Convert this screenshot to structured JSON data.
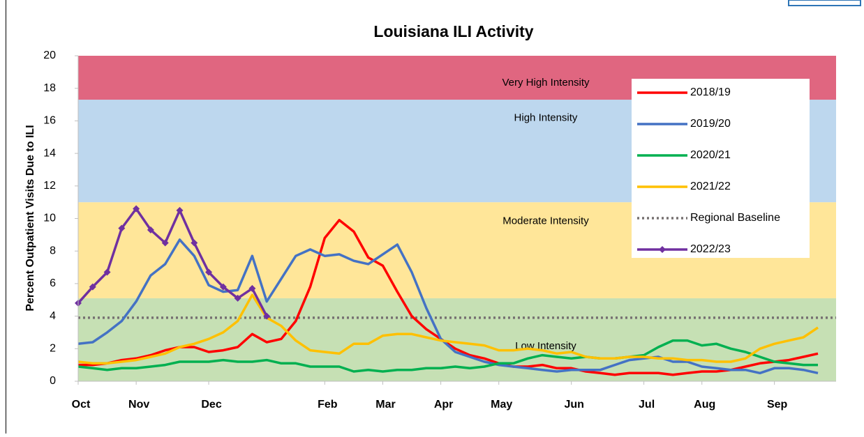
{
  "chart_data": {
    "type": "line",
    "title": "Louisiana ILI Activity",
    "y_label": "Percent Outpatient Visits Due to ILI",
    "categories": [
      "Oct",
      null,
      null,
      null,
      "Nov",
      null,
      null,
      null,
      null,
      "Dec",
      null,
      null,
      null,
      null,
      null,
      null,
      null,
      "Feb",
      null,
      null,
      null,
      "Mar",
      null,
      null,
      null,
      "Apr",
      null,
      null,
      null,
      "May",
      null,
      null,
      null,
      null,
      "Jun",
      null,
      null,
      null,
      null,
      "Jul",
      null,
      null,
      null,
      "Aug",
      null,
      null,
      null,
      null,
      "Sep",
      null,
      null,
      null
    ],
    "ylim": [
      0,
      20
    ],
    "yticks": [
      0,
      2,
      4,
      6,
      8,
      10,
      12,
      14,
      16,
      18,
      20
    ],
    "legend": "upper right",
    "bands": [
      {
        "label": "Low Intensity",
        "from": 0,
        "to": 5.1,
        "color": "#c6e0b4"
      },
      {
        "label": "Moderate Intensity",
        "from": 5.1,
        "to": 11.0,
        "color": "#ffe699"
      },
      {
        "label": "High Intensity",
        "from": 11.0,
        "to": 17.3,
        "color": "#bdd7ee"
      },
      {
        "label": "Very High Intensity",
        "from": 17.3,
        "to": 20,
        "color": "#e06680"
      }
    ],
    "series": [
      {
        "name": "2018/19",
        "color": "#ff0000",
        "values": [
          1.0,
          1.0,
          1.1,
          1.3,
          1.4,
          1.6,
          1.9,
          2.1,
          2.1,
          1.8,
          1.9,
          2.1,
          2.9,
          2.4,
          2.6,
          3.7,
          5.8,
          8.8,
          9.9,
          9.2,
          7.6,
          7.1,
          5.5,
          4.0,
          3.2,
          2.6,
          2.0,
          1.6,
          1.4,
          1.1,
          0.9,
          0.9,
          1.0,
          0.8,
          0.8,
          0.6,
          0.5,
          0.4,
          0.5,
          0.5,
          0.5,
          0.4,
          0.5,
          0.6,
          0.6,
          0.7,
          0.9,
          1.1,
          1.2,
          1.3,
          1.5,
          1.7
        ]
      },
      {
        "name": "2019/20",
        "color": "#4472c4",
        "values": [
          2.3,
          2.4,
          3.0,
          3.7,
          4.9,
          6.5,
          7.2,
          8.7,
          7.7,
          5.9,
          5.5,
          5.6,
          7.7,
          4.9,
          6.3,
          7.7,
          8.1,
          7.7,
          7.8,
          7.4,
          7.2,
          7.8,
          8.4,
          6.7,
          4.5,
          2.6,
          1.8,
          1.5,
          1.2,
          1.0,
          0.9,
          0.8,
          0.7,
          0.6,
          0.7,
          0.7,
          0.7,
          1.0,
          1.3,
          1.4,
          1.5,
          1.2,
          1.2,
          0.9,
          0.8,
          0.7,
          0.7,
          0.5,
          0.8,
          0.8,
          0.7,
          0.5
        ]
      },
      {
        "name": "2020/21",
        "color": "#00b050",
        "values": [
          0.9,
          0.8,
          0.7,
          0.8,
          0.8,
          0.9,
          1.0,
          1.2,
          1.2,
          1.2,
          1.3,
          1.2,
          1.2,
          1.3,
          1.1,
          1.1,
          0.9,
          0.9,
          0.9,
          0.6,
          0.7,
          0.6,
          0.7,
          0.7,
          0.8,
          0.8,
          0.9,
          0.8,
          0.9,
          1.1,
          1.1,
          1.4,
          1.6,
          1.5,
          1.4,
          1.5,
          1.4,
          1.4,
          1.5,
          1.6,
          2.1,
          2.5,
          2.5,
          2.2,
          2.3,
          2.0,
          1.8,
          1.5,
          1.2,
          1.1,
          1.0,
          1.0
        ]
      },
      {
        "name": "2021/22",
        "color": "#ffc000",
        "values": [
          1.2,
          1.1,
          1.1,
          1.2,
          1.3,
          1.5,
          1.7,
          2.1,
          2.3,
          2.6,
          3.0,
          3.7,
          5.3,
          3.9,
          3.4,
          2.5,
          1.9,
          1.8,
          1.7,
          2.3,
          2.3,
          2.8,
          2.9,
          2.9,
          2.7,
          2.5,
          2.4,
          2.3,
          2.2,
          1.9,
          1.9,
          2.0,
          1.9,
          1.7,
          1.8,
          1.5,
          1.4,
          1.4,
          1.5,
          1.5,
          1.4,
          1.4,
          1.3,
          1.3,
          1.2,
          1.2,
          1.4,
          2.0,
          2.3,
          2.5,
          2.7,
          3.3
        ]
      },
      {
        "name": "2022/23",
        "color": "#7030a0",
        "marker": "diamond",
        "values": [
          4.8,
          5.8,
          6.7,
          9.4,
          10.6,
          9.3,
          8.5,
          10.5,
          8.5,
          6.7,
          5.8,
          5.1,
          5.7,
          4.0,
          null,
          null,
          null,
          null,
          null,
          null,
          null,
          null,
          null,
          null,
          null,
          null,
          null,
          null,
          null,
          null,
          null,
          null,
          null,
          null,
          null,
          null,
          null,
          null,
          null,
          null,
          null,
          null,
          null,
          null,
          null,
          null,
          null,
          null,
          null,
          null,
          null,
          null
        ]
      }
    ],
    "baseline": {
      "name": "Regional Baseline",
      "value": 3.9,
      "color": "#767171"
    }
  }
}
